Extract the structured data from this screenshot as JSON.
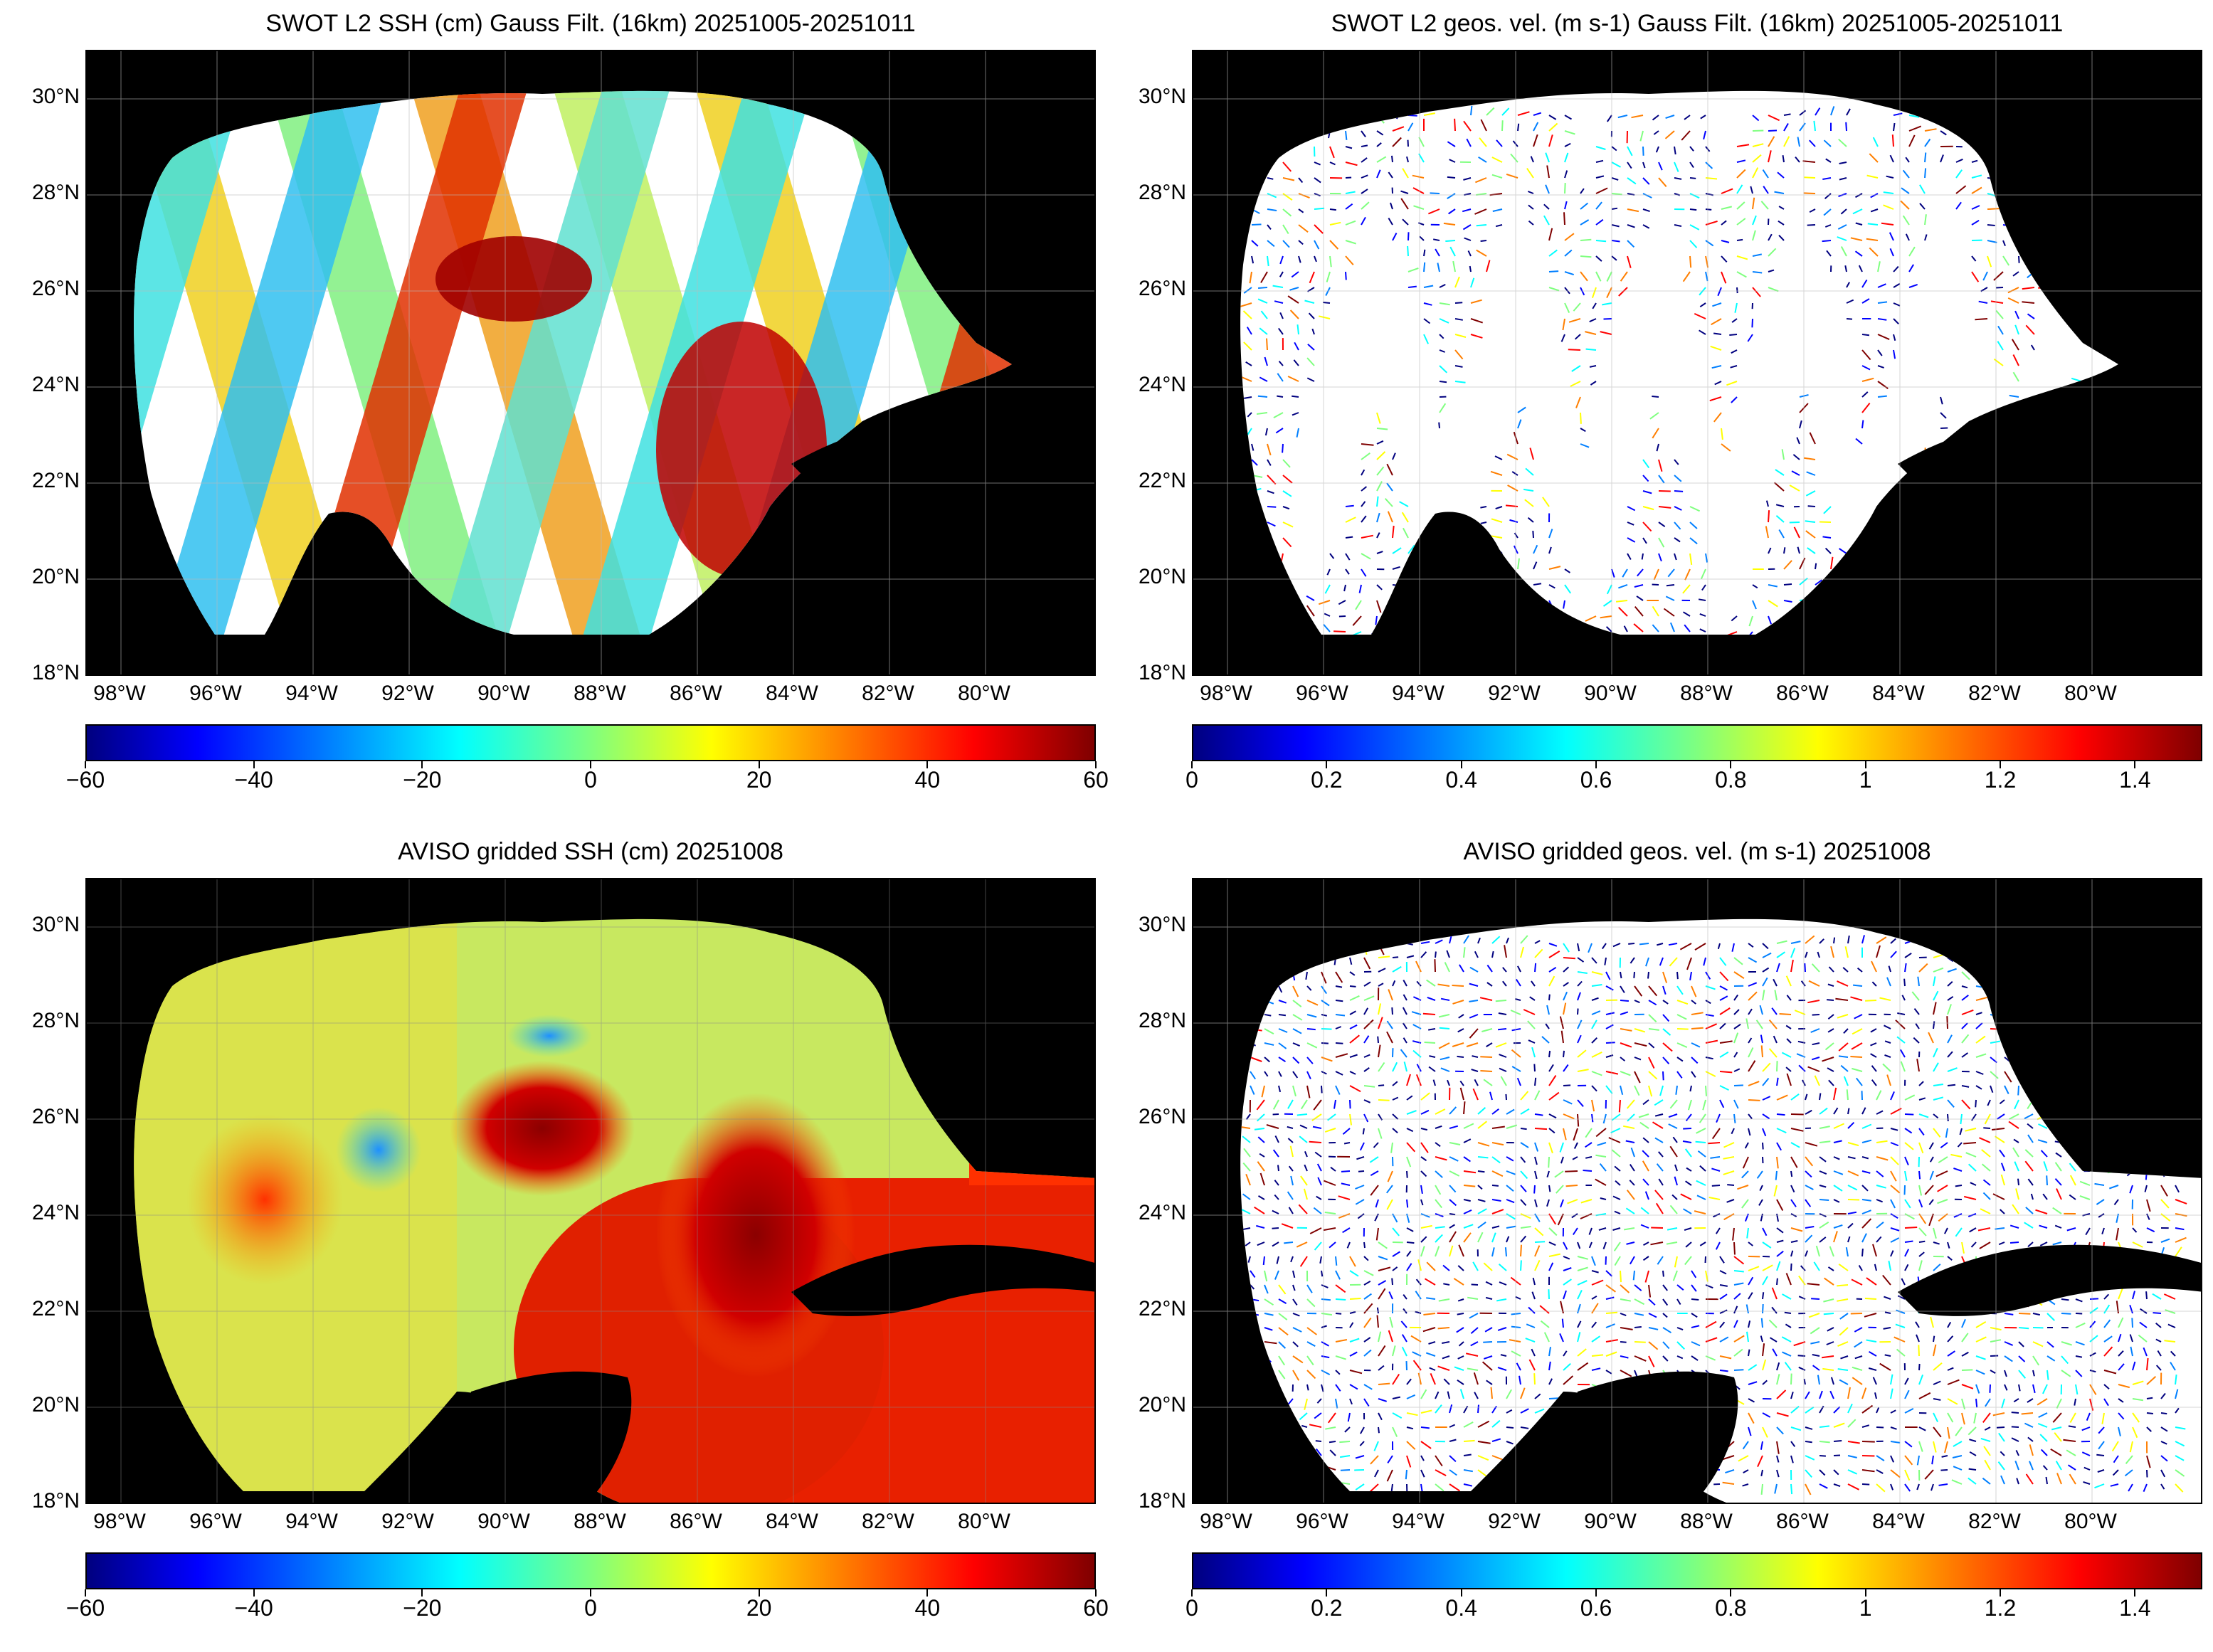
{
  "panels": [
    {
      "id": "swot-ssh",
      "title": "SWOT L2 SSH (cm) Gauss Filt. (16km) 20251005-20251011"
    },
    {
      "id": "swot-vel",
      "title": "SWOT L2 geos. vel. (m s-1) Gauss Filt. (16km) 20251005-20251011"
    },
    {
      "id": "aviso-ssh",
      "title": "AVISO gridded SSH (cm) 20251008"
    },
    {
      "id": "aviso-vel",
      "title": "AVISO gridded geos. vel. (m s-1)  20251008"
    }
  ],
  "axes": {
    "lat_labels": [
      "30°N",
      "28°N",
      "26°N",
      "24°N",
      "22°N",
      "20°N",
      "18°N"
    ],
    "lon_labels": [
      "98°W",
      "96°W",
      "94°W",
      "92°W",
      "90°W",
      "88°W",
      "86°W",
      "84°W",
      "82°W",
      "80°W"
    ]
  },
  "colorbars": {
    "ssh": {
      "ticks": [
        "−60",
        "−40",
        "−20",
        "0",
        "20",
        "40",
        "60"
      ],
      "range": [
        -60,
        60
      ],
      "colormap": "jet"
    },
    "velocity": {
      "ticks": [
        "0",
        "0.2",
        "0.4",
        "0.6",
        "0.8",
        "1",
        "1.2",
        "1.4"
      ],
      "range": [
        0,
        1.5
      ],
      "colormap": "jet"
    }
  },
  "colors": {
    "land": "#000000",
    "no_data": "#ffffff",
    "grid": "#bbbbbb"
  }
}
